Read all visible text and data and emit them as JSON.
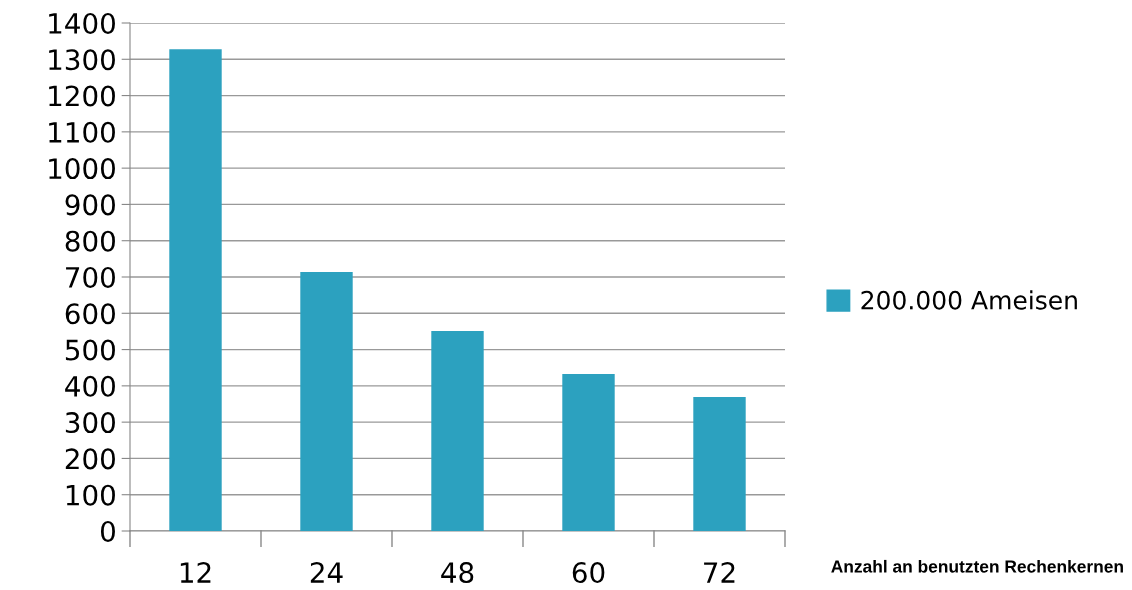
{
  "chart_data": {
    "type": "bar",
    "xlabel": "Anzahl an benutzten Rechenkernen",
    "categories": [
      "12",
      "24",
      "48",
      "60",
      "72"
    ],
    "series": [
      {
        "name": "200.000 Ameisen",
        "color": "#2ca1bf",
        "values": [
          1328,
          714,
          551,
          433,
          369
        ]
      }
    ],
    "ylim": [
      0,
      1400
    ],
    "yticks": [
      0,
      100,
      200,
      300,
      400,
      500,
      600,
      700,
      800,
      900,
      1000,
      1100,
      1200,
      1300,
      1400
    ],
    "grid": "y",
    "legend": "right"
  }
}
